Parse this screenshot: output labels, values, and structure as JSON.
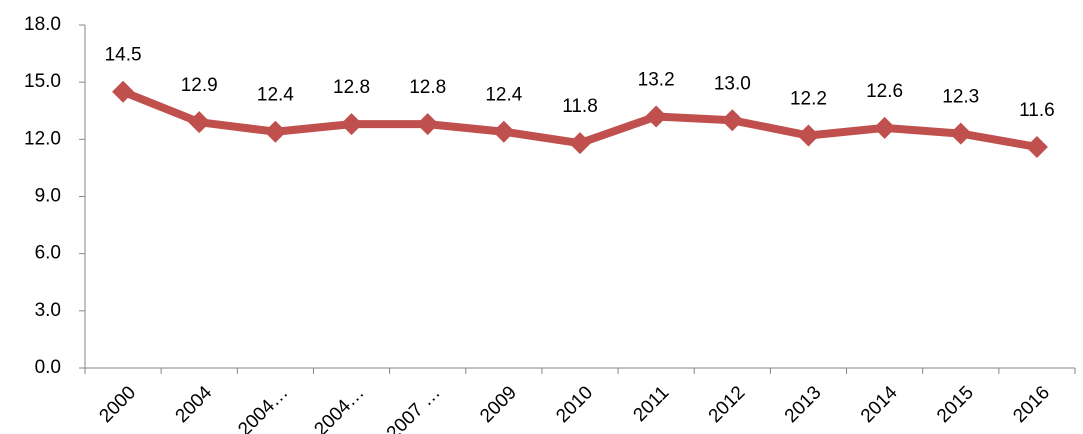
{
  "chart_data": {
    "type": "line",
    "categories": [
      "2000",
      "2004",
      "2004…",
      "2004…",
      "2007 …",
      "2009",
      "2010",
      "2011",
      "2012",
      "2013",
      "2014",
      "2015",
      "2016"
    ],
    "values": [
      14.5,
      12.9,
      12.4,
      12.8,
      12.8,
      12.4,
      11.8,
      13.2,
      13.0,
      12.2,
      12.6,
      12.3,
      11.6
    ],
    "value_labels": [
      "14.5",
      "12.9",
      "12.4",
      "12.8",
      "12.8",
      "12.4",
      "11.8",
      "13.2",
      "13.0",
      "12.2",
      "12.6",
      "12.3",
      "11.6"
    ],
    "color": "#c0504d",
    "ylim": [
      0,
      18
    ],
    "yticks": [
      {
        "value": 0,
        "label": "0.0"
      },
      {
        "value": 3,
        "label": "3.0"
      },
      {
        "value": 6,
        "label": "6.0"
      },
      {
        "value": 9,
        "label": "9.0"
      },
      {
        "value": 12,
        "label": "12.0"
      },
      {
        "value": 15,
        "label": "15.0"
      },
      {
        "value": 18,
        "label": "18.0"
      }
    ]
  }
}
